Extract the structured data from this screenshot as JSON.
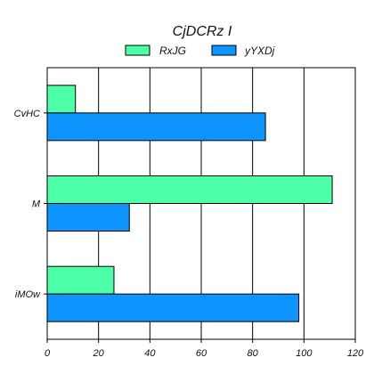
{
  "chart_data": {
    "type": "bar",
    "orientation": "horizontal",
    "title": "CjDCRz I",
    "xlabel": "",
    "ylabel": "",
    "categories": [
      "CvHC",
      "M",
      "iMOw"
    ],
    "series": [
      {
        "name": "RxJG",
        "values": [
          11,
          111,
          26
        ],
        "color": "#4dffa6"
      },
      {
        "name": "yYXDj",
        "values": [
          85,
          32,
          98
        ],
        "color": "#0d94ff"
      }
    ],
    "xlim": [
      0,
      120
    ],
    "xticks": [
      0,
      20,
      40,
      60,
      80,
      100,
      120
    ],
    "grid": true,
    "legend_position": "top-center"
  }
}
